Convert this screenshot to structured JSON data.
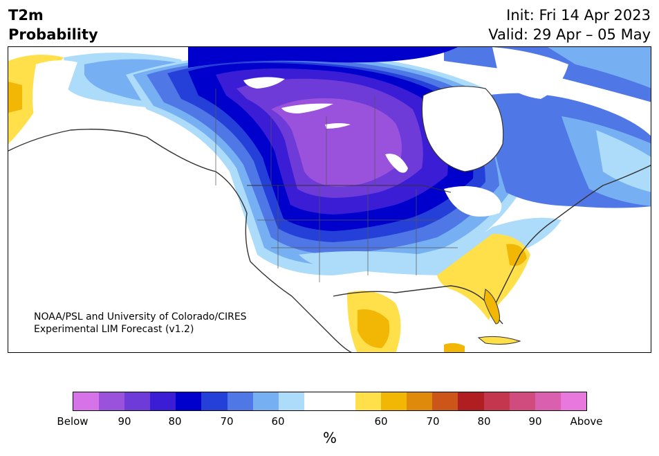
{
  "header": {
    "title_line1": "T2m",
    "title_line2": "Probability",
    "init": "Init: Fri 14 Apr 2023",
    "valid": "Valid: 29 Apr – 05 May"
  },
  "map": {
    "credit_line1": "NOAA/PSL and University of Colorado/CIRES",
    "credit_line2": "Experimental LIM Forecast (v1.2)"
  },
  "colorbar": {
    "colors": [
      "#d673e8",
      "#9a52dd",
      "#6e3ad8",
      "#3b1dd6",
      "#0000cc",
      "#2540d8",
      "#4f77e6",
      "#77b0f2",
      "#addcfb",
      "#ffffff",
      "#ffffff",
      "#ffe04a",
      "#f2b705",
      "#e08a0c",
      "#cc5519",
      "#b01e22",
      "#c4364e",
      "#d04c7e",
      "#da5fae",
      "#e878de"
    ],
    "labels": [
      "Below",
      "90",
      "80",
      "70",
      "60",
      "60",
      "70",
      "80",
      "90",
      "Above"
    ],
    "unit": "%"
  }
}
